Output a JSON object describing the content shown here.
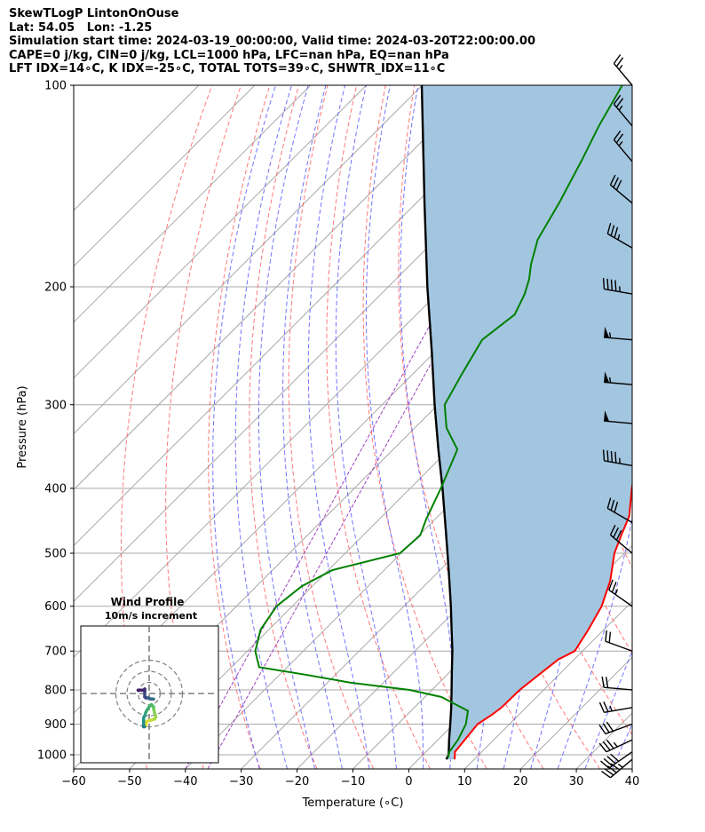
{
  "header": {
    "title_lines": [
      "SkewTLogP LintonOnOuse",
      "Lat: 54.05   Lon: -1.25",
      "Simulation start time: 2024-03-19_00:00:00, Valid time: 2024-03-20T22:00:00.00",
      "CAPE=0 j/kg, CIN=0 j/kg, LCL=1000 hPa, LFC=nan hPa, EQ=nan hPa",
      "LFT IDX=14∘C, K IDX=-25∘C, TOTAL TOTS=39∘C, SHWTR_IDX=11∘C"
    ]
  },
  "colors": {
    "temperature": "#ff0000",
    "dewpoint": "#008000",
    "parcel": "#000000",
    "cape_fill": "#a3c6e0",
    "dry_adiabat": "#ff6060",
    "moist_adiabat": "#5a5aff",
    "mixing_ratio": "#a040c0",
    "isotherm": "#a8a8a8"
  },
  "chart_data": [
    {
      "type": "line",
      "subtype": "skew-t log-p",
      "xlabel": "Temperature (∘C)",
      "ylabel": "Pressure (hPa)",
      "xlim": [
        -60,
        40
      ],
      "ylim": [
        1050,
        100
      ],
      "y_scale": "log",
      "x_ticks": [
        -60,
        -50,
        -40,
        -30,
        -20,
        -10,
        0,
        10,
        20,
        30,
        40
      ],
      "y_ticks": [
        1000,
        900,
        800,
        700,
        600,
        500,
        400,
        300,
        200,
        100
      ],
      "grid": true,
      "series": [
        {
          "key": "temperature",
          "color": "#ff0000",
          "points": [
            [
              1016,
              6.5
            ],
            [
              990,
              5.2
            ],
            [
              950,
              4.8
            ],
            [
              900,
              4.3
            ],
            [
              870,
              5.2
            ],
            [
              850,
              5.6
            ],
            [
              800,
              5.7
            ],
            [
              760,
              6.4
            ],
            [
              720,
              7.2
            ],
            [
              700,
              8.6
            ],
            [
              650,
              7.2
            ],
            [
              600,
              5.4
            ],
            [
              550,
              2.4
            ],
            [
              500,
              -1.8
            ],
            [
              470,
              -3.8
            ],
            [
              440,
              -5.8
            ],
            [
              400,
              -10.3
            ],
            [
              350,
              -16.0
            ],
            [
              300,
              -21.7
            ],
            [
              270,
              -24.7
            ],
            [
              250,
              -26.9
            ],
            [
              235,
              -28.9
            ],
            [
              220,
              -32.1
            ],
            [
              205,
              -35.6
            ],
            [
              200,
              -36.8
            ],
            [
              190,
              -37.9
            ],
            [
              180,
              -37.1
            ],
            [
              170,
              -39.1
            ],
            [
              160,
              -43.0
            ],
            [
              150,
              -46.2
            ],
            [
              140,
              -47.8
            ],
            [
              130,
              -50.3
            ],
            [
              120,
              -52.6
            ],
            [
              110,
              -54.0
            ],
            [
              100,
              -55.7
            ]
          ]
        },
        {
          "key": "dewpoint",
          "color": "#008000",
          "points": [
            [
              1010,
              5.0
            ],
            [
              990,
              4.2
            ],
            [
              950,
              3.6
            ],
            [
              900,
              2.2
            ],
            [
              860,
              0.2
            ],
            [
              820,
              -7.0
            ],
            [
              800,
              -14.0
            ],
            [
              780,
              -26.0
            ],
            [
              760,
              -35.0
            ],
            [
              740,
              -45.0
            ],
            [
              700,
              -48.6
            ],
            [
              650,
              -51.5
            ],
            [
              600,
              -52.8
            ],
            [
              560,
              -51.9
            ],
            [
              530,
              -49.3
            ],
            [
              500,
              -40.2
            ],
            [
              470,
              -39.8
            ],
            [
              445,
              -41.6
            ],
            [
              400,
              -44.5
            ],
            [
              350,
              -48.5
            ],
            [
              325,
              -54.3
            ],
            [
              300,
              -58.8
            ],
            [
              270,
              -61.2
            ],
            [
              240,
              -63.7
            ],
            [
              220,
              -62.4
            ],
            [
              205,
              -64.3
            ],
            [
              195,
              -66.1
            ],
            [
              185,
              -68.5
            ],
            [
              170,
              -71.7
            ],
            [
              150,
              -74.4
            ],
            [
              130,
              -77.9
            ],
            [
              115,
              -81.1
            ],
            [
              100,
              -84.2
            ]
          ]
        },
        {
          "key": "parcel",
          "color": "#000000",
          "points": [
            [
              1016,
              5.0
            ],
            [
              1000,
              4.6
            ],
            [
              950,
              2.0
            ],
            [
              900,
              -0.6
            ],
            [
              850,
              -3.4
            ],
            [
              800,
              -6.5
            ],
            [
              750,
              -9.8
            ],
            [
              700,
              -13.3
            ],
            [
              650,
              -17.3
            ],
            [
              600,
              -21.6
            ],
            [
              550,
              -26.4
            ],
            [
              500,
              -31.7
            ],
            [
              450,
              -37.6
            ],
            [
              400,
              -44.2
            ],
            [
              350,
              -51.9
            ],
            [
              300,
              -60.6
            ],
            [
              250,
              -70.6
            ],
            [
              200,
              -83.0
            ],
            [
              150,
              -98.5
            ],
            [
              100,
              -120.1
            ]
          ]
        }
      ]
    },
    {
      "type": "scatter",
      "subtype": "hodograph",
      "title": "Wind Profile",
      "subtitle": "10m/s increment",
      "u_range": [
        -30,
        30
      ],
      "v_range": [
        -30,
        30
      ],
      "rings_ms": [
        10,
        20,
        30
      ],
      "points": [
        [
          -3,
          -29
        ],
        [
          -3,
          -27
        ],
        [
          -2,
          -25
        ],
        [
          2,
          -24
        ],
        [
          5,
          -23
        ],
        [
          6,
          -21
        ],
        [
          5,
          -18
        ],
        [
          4,
          -14
        ],
        [
          4,
          -12
        ],
        [
          3,
          -11
        ],
        [
          2,
          -10
        ],
        [
          0,
          -12
        ],
        [
          -2,
          -15
        ],
        [
          -3,
          -17
        ],
        [
          -4,
          -20
        ],
        [
          -5,
          -22
        ],
        [
          -5,
          -25
        ],
        [
          -5,
          -29
        ],
        [
          -5,
          -30
        ],
        [
          -4,
          -30
        ],
        [
          4,
          -5
        ],
        [
          2,
          -5
        ],
        [
          -1,
          -4
        ],
        [
          -2,
          -4
        ],
        [
          -3,
          -4
        ],
        [
          -4,
          -3
        ],
        [
          -4,
          2
        ],
        [
          -4,
          4
        ],
        [
          -5,
          3
        ],
        [
          -8,
          3
        ],
        [
          -10,
          3
        ]
      ]
    },
    {
      "type": "scatter",
      "subtype": "wind barbs",
      "note": "wind speed (kt) and direction (deg from) by pressure level, drawn at right edge",
      "barbs": [
        [
          1016,
          45,
          230
        ],
        [
          990,
          40,
          235
        ],
        [
          950,
          35,
          245
        ],
        [
          900,
          30,
          250
        ],
        [
          850,
          25,
          260
        ],
        [
          800,
          20,
          275
        ],
        [
          700,
          20,
          290
        ],
        [
          600,
          25,
          305
        ],
        [
          500,
          30,
          310
        ],
        [
          450,
          30,
          300
        ],
        [
          370,
          45,
          280
        ],
        [
          320,
          50,
          275
        ],
        [
          280,
          55,
          275
        ],
        [
          240,
          55,
          275
        ],
        [
          205,
          45,
          280
        ],
        [
          175,
          35,
          300
        ],
        [
          150,
          30,
          310
        ],
        [
          130,
          25,
          320
        ],
        [
          115,
          25,
          320
        ],
        [
          100,
          25,
          320
        ]
      ]
    }
  ]
}
